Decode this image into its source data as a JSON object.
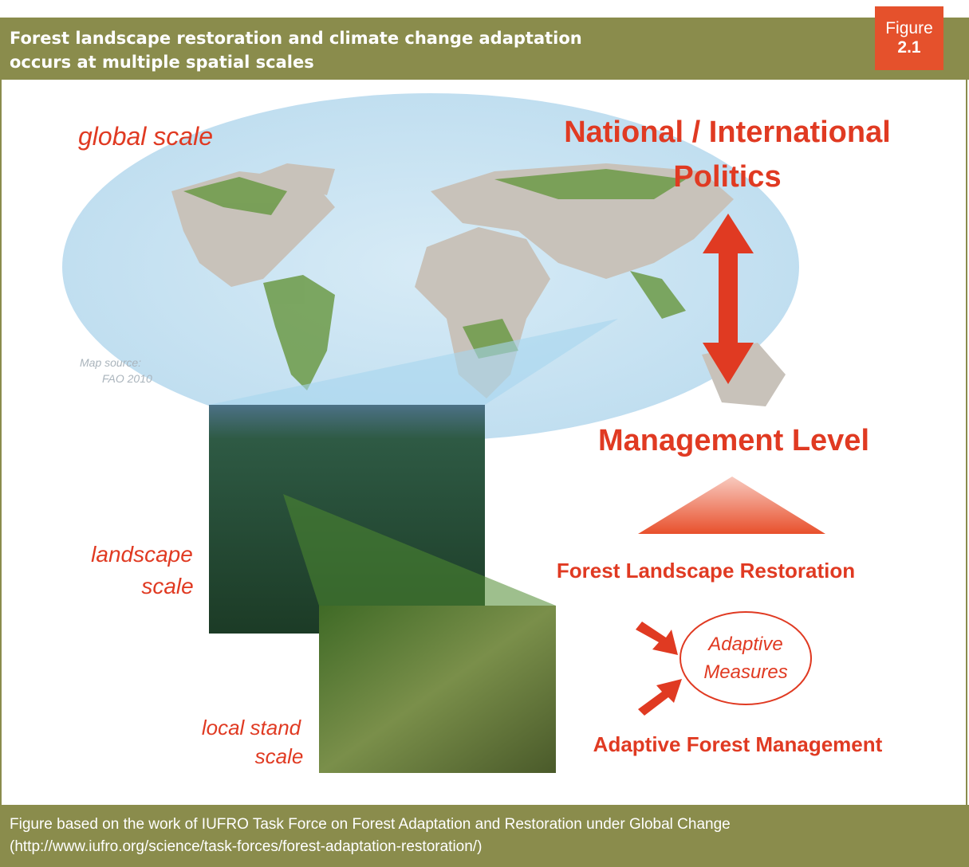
{
  "header": {
    "title_lines": [
      "Forest landscape restoration and climate change adaptation",
      "occurs at multiple spatial scales"
    ],
    "badge": {
      "label": "Figure",
      "number": "2.1"
    }
  },
  "diagram": {
    "global_scale": "global scale",
    "politics_lines": [
      "National / International",
      "Politics"
    ],
    "management_level": "Management Level",
    "map_source_lines": [
      "Map source:",
      "FAO 2010"
    ],
    "landscape_scale_lines": [
      "landscape",
      "scale"
    ],
    "local_stand_scale_lines": [
      "local stand",
      "scale"
    ],
    "forest_landscape_restoration": "Forest Landscape Restoration",
    "adaptive_measures_lines": [
      "Adaptive",
      "Measures"
    ],
    "adaptive_forest_management": "Adaptive Forest Management"
  },
  "footer": {
    "lines": [
      "Figure based on the work of IUFRO Task Force on Forest Adaptation and Restoration under Global Change",
      "(http://www.iufro.org/science/task-forces/forest-adaptation-restoration/)"
    ]
  }
}
